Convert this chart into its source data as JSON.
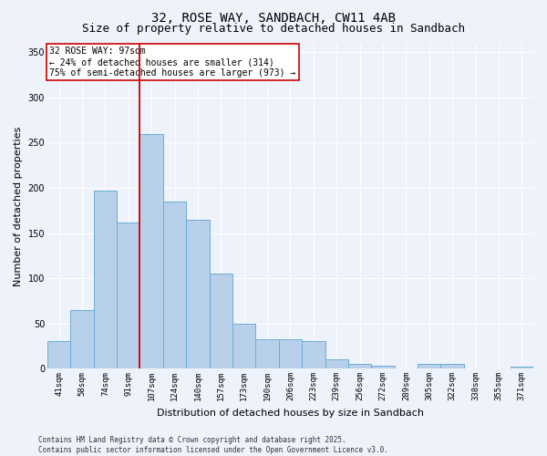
{
  "title": "32, ROSE WAY, SANDBACH, CW11 4AB",
  "subtitle": "Size of property relative to detached houses in Sandbach",
  "xlabel": "Distribution of detached houses by size in Sandbach",
  "ylabel": "Number of detached properties",
  "categories": [
    "41sqm",
    "58sqm",
    "74sqm",
    "91sqm",
    "107sqm",
    "124sqm",
    "140sqm",
    "157sqm",
    "173sqm",
    "190sqm",
    "206sqm",
    "223sqm",
    "239sqm",
    "256sqm",
    "272sqm",
    "289sqm",
    "305sqm",
    "322sqm",
    "338sqm",
    "355sqm",
    "371sqm"
  ],
  "values": [
    30,
    65,
    197,
    162,
    260,
    185,
    165,
    105,
    50,
    32,
    32,
    30,
    10,
    5,
    3,
    0,
    5,
    5,
    0,
    0,
    2
  ],
  "bar_color": "#b8d0ea",
  "bar_edge_color": "#6aaed6",
  "vline_x_index": 3,
  "vline_color": "#cc0000",
  "annotation_text": "32 ROSE WAY: 97sqm\n← 24% of detached houses are smaller (314)\n75% of semi-detached houses are larger (973) →",
  "annotation_box_facecolor": "white",
  "annotation_box_edgecolor": "#cc0000",
  "ylim": [
    0,
    360
  ],
  "yticks": [
    0,
    50,
    100,
    150,
    200,
    250,
    300,
    350
  ],
  "footer": "Contains HM Land Registry data © Crown copyright and database right 2025.\nContains public sector information licensed under the Open Government Licence v3.0.",
  "bg_color": "#eef2fb",
  "grid_color": "#ffffff",
  "title_fontsize": 10,
  "subtitle_fontsize": 9,
  "axis_label_fontsize": 8,
  "tick_fontsize": 6.5,
  "footer_fontsize": 5.5,
  "annotation_fontsize": 7
}
